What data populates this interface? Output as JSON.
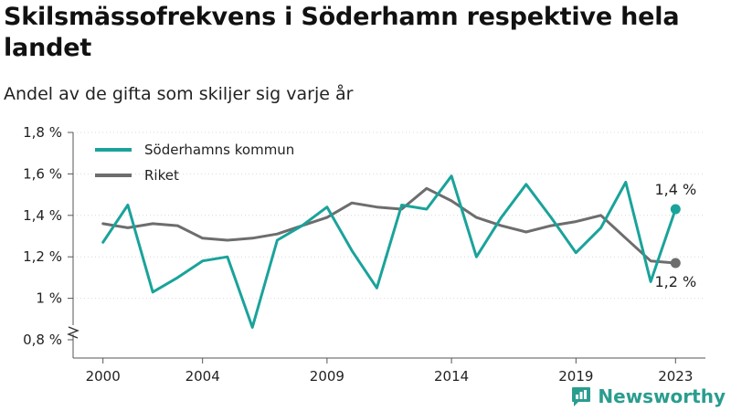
{
  "header": {
    "title": "Skilsmässofrekvens i Söderhamn respektive hela landet",
    "subtitle": "Andel av de gifta som skiljer sig varje år"
  },
  "brand": {
    "name": "Newsworthy",
    "icon": "newsworthy-logo-icon",
    "color": "#2a9d8f"
  },
  "chart_data": {
    "type": "line",
    "x": [
      2000,
      2001,
      2002,
      2003,
      2004,
      2005,
      2006,
      2007,
      2008,
      2009,
      2010,
      2011,
      2012,
      2013,
      2014,
      2015,
      2016,
      2017,
      2018,
      2019,
      2020,
      2021,
      2022,
      2023
    ],
    "x_ticks": [
      2000,
      2004,
      2009,
      2014,
      2019,
      2023
    ],
    "x_tick_labels": [
      "2000",
      "2004",
      "2009",
      "2014",
      "2019",
      "2023"
    ],
    "ylim": [
      0.8,
      1.8
    ],
    "y_ticks": [
      0.8,
      1.0,
      1.2,
      1.4,
      1.6,
      1.8
    ],
    "y_tick_labels": [
      "0,8 %",
      "1 %",
      "1,2 %",
      "1,4 %",
      "1,6 %",
      "1,8 %"
    ],
    "axis_break": true,
    "grid": "horizontal",
    "legend_position": "top-left",
    "series": [
      {
        "name": "Söderhamns kommun",
        "color": "#1aa39a",
        "values": [
          1.27,
          1.45,
          1.03,
          1.1,
          1.18,
          1.2,
          0.86,
          1.28,
          1.35,
          1.44,
          1.23,
          1.05,
          1.45,
          1.43,
          1.59,
          1.2,
          1.39,
          1.55,
          1.39,
          1.22,
          1.34,
          1.56,
          1.08,
          1.43
        ],
        "end_label": "1,4 %"
      },
      {
        "name": "Riket",
        "color": "#6d6d6d",
        "values": [
          1.36,
          1.34,
          1.36,
          1.35,
          1.29,
          1.28,
          1.29,
          1.31,
          1.35,
          1.39,
          1.46,
          1.44,
          1.43,
          1.53,
          1.47,
          1.39,
          1.35,
          1.32,
          1.35,
          1.37,
          1.4,
          1.29,
          1.18,
          1.17
        ],
        "end_label": "1,2 %"
      }
    ]
  }
}
